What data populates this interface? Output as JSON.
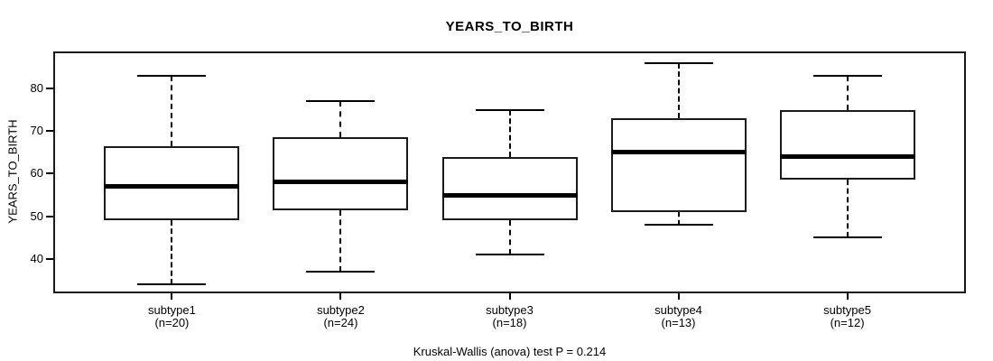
{
  "chart_data": {
    "type": "boxplot",
    "title": "YEARS_TO_BIRTH",
    "ylabel": "YEARS_TO_BIRTH",
    "footer": "Kruskal-Wallis (anova) test P = 0.214",
    "y_ticks": [
      40,
      50,
      60,
      70,
      80
    ],
    "ylim": [
      31.9,
      88.7
    ],
    "grid": false,
    "legend": "none",
    "groups": [
      {
        "label": "subtype1",
        "n_label": "(n=20)",
        "min": 34,
        "q1": 49,
        "median": 57,
        "q3": 66.5,
        "max": 83
      },
      {
        "label": "subtype2",
        "n_label": "(n=24)",
        "min": 37,
        "q1": 51.5,
        "median": 58,
        "q3": 68.5,
        "max": 77
      },
      {
        "label": "subtype3",
        "n_label": "(n=18)",
        "min": 41,
        "q1": 49,
        "median": 55,
        "q3": 64,
        "max": 75
      },
      {
        "label": "subtype4",
        "n_label": "(n=13)",
        "min": 48,
        "q1": 51,
        "median": 65,
        "q3": 73,
        "max": 86
      },
      {
        "label": "subtype5",
        "n_label": "(n=12)",
        "min": 45,
        "q1": 58.5,
        "median": 64,
        "q3": 75,
        "max": 83
      }
    ],
    "colors": {
      "line": "#000000",
      "box_fill": "#ffffff",
      "median": "#000000",
      "text": "#000000",
      "background": "#ffffff"
    }
  }
}
